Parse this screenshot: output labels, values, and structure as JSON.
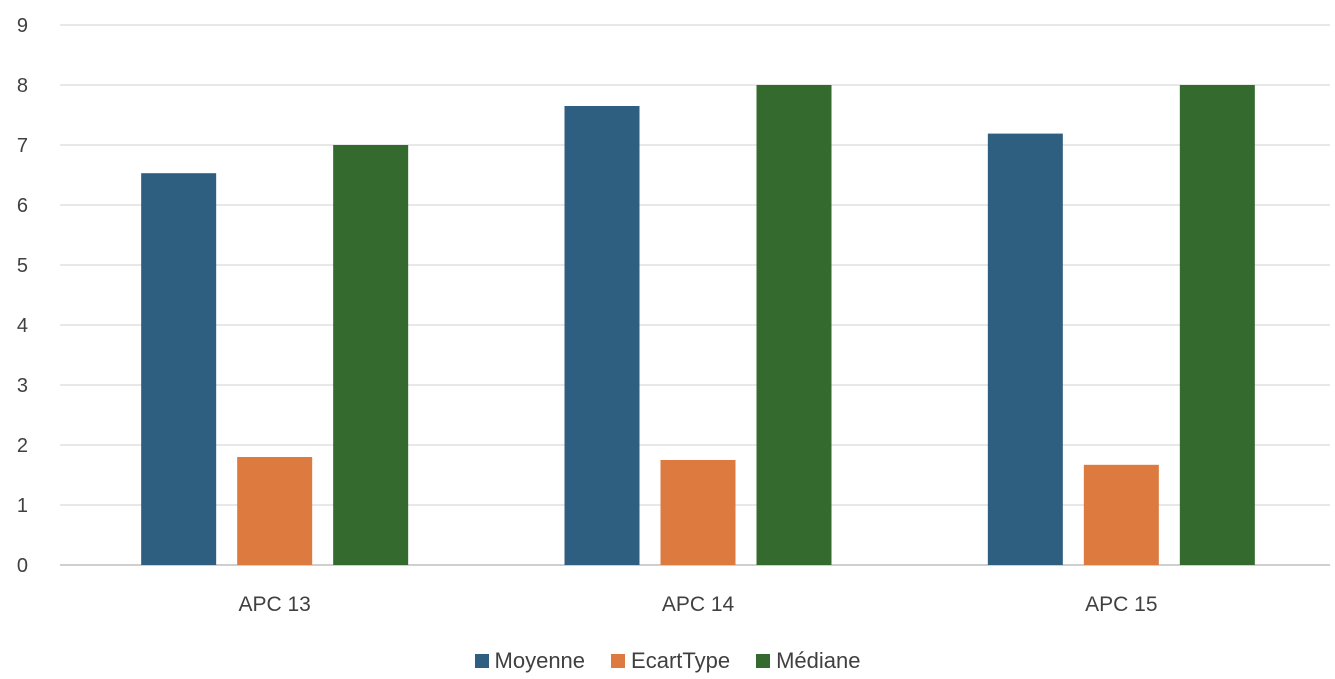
{
  "chart_data": {
    "type": "bar",
    "title": "",
    "xlabel": "",
    "ylabel": "",
    "categories": [
      "APC 13",
      "APC 14",
      "APC 15"
    ],
    "ylim": [
      0,
      9
    ],
    "yticks": [
      0,
      1,
      2,
      3,
      4,
      5,
      6,
      7,
      8,
      9
    ],
    "grid": true,
    "legend_position": "bottom",
    "series": [
      {
        "name": "Moyenne",
        "color": "#2e5f80",
        "values": [
          6.53,
          7.65,
          7.19
        ]
      },
      {
        "name": "EcartType",
        "color": "#dd7a40",
        "values": [
          1.8,
          1.75,
          1.67
        ]
      },
      {
        "name": "Médiane",
        "color": "#346a2e",
        "values": [
          7,
          8,
          8
        ]
      }
    ]
  }
}
